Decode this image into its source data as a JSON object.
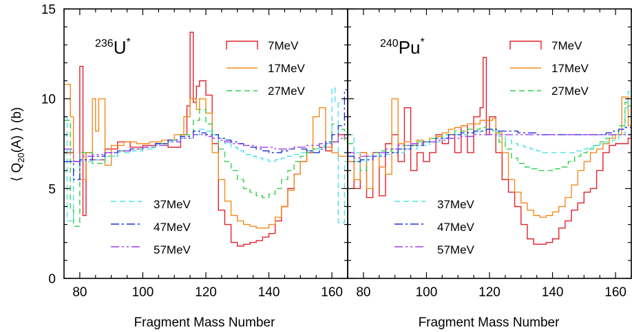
{
  "colors": {
    "7MeV": "#e0202a",
    "17MeV": "#f28a1c",
    "27MeV": "#2ed14a",
    "37MeV": "#4fe0e8",
    "47MeV": "#1f2fd6",
    "57MeV": "#9b3ff0"
  },
  "chart_data": [
    {
      "type": "line",
      "step": true,
      "panel": "left",
      "nucleus_label": {
        "mass": "236",
        "symbol": "U",
        "sup": "*"
      },
      "xlabel": "Fragment Mass Number",
      "ylabel": "⟨Q20(A)⟩ (b)",
      "xlim": [
        75,
        165
      ],
      "ylim": [
        0,
        15
      ],
      "xticks": [
        80,
        100,
        120,
        140,
        160
      ],
      "yticks": [
        0,
        5,
        10,
        15
      ],
      "series": [
        {
          "name": "7MeV",
          "x": [
            75,
            78,
            80,
            81,
            82,
            84,
            88,
            92,
            96,
            100,
            104,
            108,
            112,
            114,
            115,
            116,
            117,
            118,
            120,
            122,
            124,
            126,
            128,
            130,
            132,
            134,
            136,
            138,
            140,
            142,
            144,
            146,
            148,
            150,
            152,
            154,
            156,
            158,
            160,
            162,
            164,
            165
          ],
          "y": [
            7.0,
            6.5,
            11.8,
            3.5,
            7.0,
            6.6,
            7.2,
            7.6,
            7.3,
            7.4,
            7.5,
            7.3,
            8.0,
            9.6,
            13.7,
            9.8,
            10.7,
            11.0,
            10.2,
            7.5,
            3.8,
            3.0,
            2.0,
            1.8,
            1.9,
            2.0,
            2.1,
            2.3,
            2.5,
            3.2,
            4.0,
            5.0,
            5.8,
            6.5,
            7.0,
            7.2,
            7.3,
            7.1,
            7.6,
            8.0,
            7.8,
            7.8
          ]
        },
        {
          "name": "17MeV",
          "x": [
            75,
            77,
            78,
            80,
            82,
            84,
            85,
            86,
            88,
            90,
            94,
            98,
            102,
            106,
            110,
            113,
            115,
            117,
            118,
            120,
            122,
            124,
            126,
            128,
            130,
            132,
            134,
            136,
            138,
            140,
            142,
            144,
            146,
            148,
            150,
            152,
            154,
            156,
            158,
            160,
            162,
            164,
            165
          ],
          "y": [
            10.8,
            9.0,
            6.5,
            5.5,
            7.0,
            10.0,
            8.2,
            10.0,
            6.3,
            7.4,
            7.6,
            7.5,
            7.6,
            7.7,
            8.0,
            9.0,
            10.0,
            9.4,
            10.0,
            9.2,
            7.0,
            5.5,
            4.3,
            3.5,
            3.2,
            3.0,
            2.9,
            2.8,
            2.8,
            3.0,
            3.4,
            4.0,
            4.9,
            5.8,
            6.5,
            7.1,
            9.0,
            9.5,
            7.3,
            7.0,
            6.8,
            6.8,
            6.8
          ]
        },
        {
          "name": "27MeV",
          "x": [
            75,
            77,
            78,
            80,
            84,
            88,
            92,
            96,
            100,
            104,
            108,
            112,
            116,
            118,
            120,
            122,
            124,
            126,
            128,
            130,
            132,
            134,
            136,
            138,
            140,
            142,
            144,
            146,
            148,
            150,
            152,
            154,
            156,
            158,
            160,
            162,
            164,
            165
          ],
          "y": [
            8.8,
            3.8,
            2.9,
            7.0,
            6.4,
            6.8,
            7.1,
            7.2,
            7.3,
            7.5,
            7.7,
            8.0,
            8.8,
            9.4,
            8.6,
            8.0,
            7.2,
            6.5,
            6.0,
            5.5,
            5.0,
            4.8,
            4.6,
            4.5,
            4.7,
            5.0,
            5.5,
            6.0,
            6.5,
            6.8,
            7.0,
            7.2,
            7.4,
            7.6,
            8.6,
            8.3,
            7.6,
            7.6
          ]
        },
        {
          "name": "37MeV",
          "x": [
            75,
            76,
            78,
            80,
            84,
            88,
            92,
            96,
            100,
            104,
            108,
            112,
            116,
            118,
            120,
            122,
            124,
            126,
            128,
            130,
            132,
            134,
            136,
            138,
            140,
            142,
            144,
            146,
            148,
            150,
            152,
            154,
            156,
            158,
            160,
            161,
            162,
            164,
            165
          ],
          "y": [
            9.0,
            3.2,
            6.0,
            6.5,
            6.6,
            6.8,
            7.0,
            7.1,
            7.2,
            7.4,
            7.6,
            7.8,
            8.0,
            8.3,
            8.2,
            8.0,
            7.8,
            7.5,
            7.3,
            7.1,
            6.9,
            6.8,
            6.7,
            6.6,
            6.5,
            6.6,
            6.7,
            6.8,
            6.9,
            7.0,
            7.1,
            7.2,
            7.3,
            7.5,
            10.6,
            9.8,
            3.1,
            6.5,
            6.5
          ]
        },
        {
          "name": "47MeV",
          "x": [
            75,
            78,
            80,
            84,
            88,
            92,
            96,
            100,
            104,
            108,
            112,
            116,
            118,
            120,
            122,
            124,
            126,
            128,
            130,
            132,
            134,
            136,
            138,
            140,
            142,
            144,
            146,
            148,
            150,
            152,
            154,
            156,
            158,
            160,
            162,
            164,
            165
          ],
          "y": [
            6.5,
            5.5,
            6.6,
            6.8,
            7.0,
            7.1,
            7.2,
            7.3,
            7.5,
            7.7,
            7.9,
            8.2,
            8.1,
            8.0,
            8.0,
            7.8,
            7.7,
            7.6,
            7.5,
            7.4,
            7.3,
            7.2,
            7.1,
            7.0,
            7.0,
            7.1,
            7.2,
            7.3,
            7.2,
            7.1,
            7.0,
            7.2,
            7.6,
            8.0,
            8.5,
            10.5,
            10.5
          ]
        },
        {
          "name": "57MeV",
          "x": [
            75,
            78,
            80,
            84,
            88,
            92,
            96,
            100,
            104,
            108,
            112,
            116,
            118,
            120,
            122,
            124,
            126,
            128,
            130,
            132,
            134,
            136,
            138,
            140,
            142,
            144,
            146,
            148,
            150,
            152,
            154,
            156,
            158,
            160,
            162,
            164,
            165
          ],
          "y": [
            7.2,
            6.5,
            6.8,
            6.9,
            7.0,
            7.1,
            7.2,
            7.3,
            7.4,
            7.6,
            7.8,
            8.0,
            8.0,
            7.9,
            7.8,
            7.7,
            7.6,
            7.5,
            7.5,
            7.4,
            7.4,
            7.3,
            7.3,
            7.3,
            7.2,
            7.2,
            7.2,
            7.3,
            7.3,
            7.4,
            7.4,
            7.5,
            7.5,
            7.6,
            7.8,
            8.0,
            8.0
          ]
        }
      ]
    },
    {
      "type": "line",
      "step": true,
      "panel": "right",
      "nucleus_label": {
        "mass": "240",
        "symbol": "Pu",
        "sup": "*"
      },
      "xlabel": "Fragment Mass Number",
      "ylabel": "",
      "xlim": [
        75,
        165
      ],
      "ylim": [
        0,
        15
      ],
      "xticks": [
        80,
        100,
        120,
        140,
        160
      ],
      "yticks": [
        0,
        5,
        10,
        15
      ],
      "series": [
        {
          "name": "7MeV",
          "x": [
            75,
            77,
            79,
            81,
            83,
            85,
            87,
            89,
            91,
            93,
            95,
            97,
            99,
            101,
            103,
            105,
            107,
            109,
            111,
            113,
            115,
            117,
            118,
            119,
            120,
            122,
            124,
            126,
            128,
            130,
            132,
            134,
            136,
            138,
            140,
            142,
            144,
            146,
            148,
            150,
            152,
            154,
            156,
            158,
            160,
            162,
            164,
            165
          ],
          "y": [
            6.5,
            5.0,
            7.0,
            4.5,
            7.0,
            4.6,
            7.5,
            8.0,
            6.5,
            9.5,
            6.0,
            7.0,
            6.5,
            7.0,
            8.0,
            7.5,
            8.0,
            7.0,
            8.5,
            7.0,
            9.0,
            9.5,
            12.3,
            8.0,
            9.0,
            7.0,
            5.5,
            4.8,
            4.0,
            3.0,
            2.2,
            1.9,
            1.9,
            2.0,
            2.2,
            2.8,
            3.2,
            3.8,
            4.2,
            4.8,
            5.0,
            6.0,
            7.0,
            7.4,
            7.5,
            7.5,
            7.8,
            7.8
          ]
        },
        {
          "name": "17MeV",
          "x": [
            75,
            77,
            79,
            81,
            83,
            85,
            87,
            89,
            91,
            93,
            95,
            97,
            99,
            101,
            103,
            105,
            107,
            109,
            111,
            113,
            115,
            117,
            119,
            121,
            122,
            124,
            126,
            128,
            130,
            132,
            134,
            136,
            138,
            140,
            142,
            144,
            146,
            148,
            150,
            152,
            154,
            156,
            158,
            160,
            162,
            164,
            165
          ],
          "y": [
            6.5,
            5.5,
            7.0,
            5.0,
            7.0,
            6.2,
            5.8,
            10.0,
            7.5,
            7.6,
            7.4,
            7.7,
            7.6,
            7.8,
            7.9,
            8.1,
            8.3,
            8.4,
            8.5,
            8.6,
            8.6,
            8.8,
            8.8,
            8.9,
            8.1,
            7.0,
            5.5,
            4.8,
            4.2,
            3.8,
            3.5,
            3.4,
            3.5,
            3.7,
            4.0,
            4.5,
            5.2,
            6.0,
            6.5,
            7.0,
            7.2,
            7.5,
            7.8,
            8.0,
            10.1,
            8.5,
            8.5
          ]
        },
        {
          "name": "27MeV",
          "x": [
            75,
            77,
            79,
            81,
            83,
            85,
            89,
            93,
            97,
            101,
            105,
            109,
            113,
            117,
            119,
            121,
            123,
            125,
            127,
            129,
            131,
            133,
            135,
            137,
            139,
            141,
            143,
            145,
            147,
            149,
            151,
            153,
            155,
            157,
            159,
            161,
            163,
            164,
            165
          ],
          "y": [
            7.5,
            6.5,
            6.0,
            6.8,
            7.0,
            7.1,
            7.2,
            7.4,
            7.6,
            7.8,
            8.0,
            8.2,
            8.3,
            8.4,
            8.3,
            8.2,
            7.6,
            7.2,
            6.7,
            6.4,
            6.2,
            6.1,
            6.0,
            6.0,
            6.0,
            6.1,
            6.2,
            6.5,
            6.8,
            7.0,
            7.2,
            7.4,
            7.6,
            7.8,
            8.0,
            8.5,
            9.8,
            9.6,
            9.6
          ]
        },
        {
          "name": "37MeV",
          "x": [
            75,
            77,
            79,
            81,
            85,
            89,
            93,
            97,
            101,
            105,
            109,
            113,
            117,
            119,
            121,
            123,
            125,
            127,
            129,
            131,
            133,
            135,
            137,
            139,
            141,
            143,
            145,
            147,
            149,
            151,
            153,
            155,
            157,
            159,
            161,
            163,
            164,
            165
          ],
          "y": [
            8.0,
            7.0,
            6.5,
            6.8,
            6.9,
            7.0,
            7.2,
            7.4,
            7.6,
            7.8,
            8.0,
            8.1,
            8.2,
            8.3,
            8.2,
            7.9,
            7.7,
            7.5,
            7.4,
            7.3,
            7.2,
            7.1,
            7.0,
            7.0,
            7.0,
            7.0,
            7.0,
            7.1,
            7.2,
            7.3,
            7.4,
            7.5,
            7.6,
            7.7,
            8.0,
            9.5,
            10.4,
            10.4
          ]
        },
        {
          "name": "47MeV",
          "x": [
            75,
            77,
            79,
            83,
            87,
            91,
            95,
            99,
            103,
            107,
            111,
            115,
            119,
            121,
            123,
            125,
            127,
            129,
            131,
            133,
            135,
            137,
            139,
            141,
            143,
            145,
            147,
            149,
            151,
            153,
            155,
            157,
            159,
            161,
            163,
            165
          ],
          "y": [
            6.8,
            6.5,
            6.6,
            6.8,
            7.0,
            7.2,
            7.4,
            7.6,
            7.8,
            8.0,
            8.1,
            8.2,
            8.3,
            8.3,
            8.2,
            8.2,
            8.2,
            8.1,
            8.1,
            8.1,
            8.0,
            8.0,
            8.0,
            8.0,
            8.0,
            8.0,
            8.0,
            8.0,
            8.0,
            8.0,
            8.0,
            8.1,
            8.2,
            8.3,
            8.4,
            8.4
          ]
        },
        {
          "name": "57MeV",
          "x": [
            75,
            77,
            79,
            83,
            87,
            91,
            95,
            99,
            103,
            107,
            111,
            115,
            119,
            121,
            123,
            125,
            127,
            129,
            131,
            133,
            135,
            137,
            139,
            141,
            143,
            145,
            147,
            149,
            151,
            153,
            155,
            157,
            159,
            161,
            163,
            165
          ],
          "y": [
            7.0,
            6.7,
            6.8,
            7.0,
            7.2,
            7.4,
            7.5,
            7.6,
            7.7,
            7.8,
            7.9,
            8.0,
            8.0,
            8.0,
            8.0,
            8.0,
            8.0,
            8.0,
            8.0,
            8.0,
            8.0,
            8.0,
            8.0,
            8.0,
            8.0,
            8.0,
            8.0,
            8.0,
            8.0,
            8.0,
            8.0,
            8.0,
            8.0,
            8.0,
            8.0,
            8.0
          ]
        }
      ]
    }
  ]
}
